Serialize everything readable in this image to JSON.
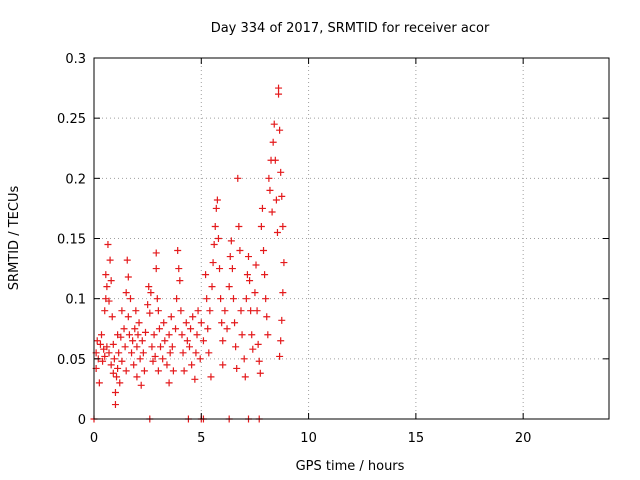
{
  "chart_data": {
    "type": "scatter",
    "title": "Day 334 of 2017, SRMTID for receiver acor",
    "xlabel": "GPS time / hours",
    "ylabel": "SRMTID / TECUs",
    "xlim": [
      0,
      24
    ],
    "ylim": [
      0,
      0.3
    ],
    "xticks": [
      0,
      5,
      10,
      15,
      20
    ],
    "xtick_labels": [
      "0",
      "5",
      "10",
      "15",
      "20"
    ],
    "yticks": [
      0,
      0.05,
      0.1,
      0.15,
      0.2,
      0.25,
      0.3
    ],
    "ytick_labels": [
      "0",
      "0.05",
      "0.1",
      "0.15",
      "0.2",
      "0.25",
      "0.3"
    ],
    "grid": true,
    "marker": "+",
    "color": "#e41a1c",
    "series": [
      {
        "name": "SRMTID",
        "points": [
          [
            0.0,
            0.0
          ],
          [
            2.6,
            0.0
          ],
          [
            4.4,
            0.0
          ],
          [
            5.0,
            0.0
          ],
          [
            5.1,
            0.0
          ],
          [
            6.3,
            0.0
          ],
          [
            7.2,
            0.0
          ],
          [
            7.7,
            0.0
          ],
          [
            0.1,
            0.042
          ],
          [
            0.1,
            0.055
          ],
          [
            0.15,
            0.065
          ],
          [
            0.2,
            0.05
          ],
          [
            0.25,
            0.03
          ],
          [
            0.3,
            0.062
          ],
          [
            0.35,
            0.07
          ],
          [
            0.4,
            0.048
          ],
          [
            0.45,
            0.058
          ],
          [
            0.5,
            0.052
          ],
          [
            0.5,
            0.09
          ],
          [
            0.55,
            0.1
          ],
          [
            0.55,
            0.12
          ],
          [
            0.6,
            0.11
          ],
          [
            0.6,
            0.06
          ],
          [
            0.65,
            0.145
          ],
          [
            0.7,
            0.098
          ],
          [
            0.7,
            0.055
          ],
          [
            0.75,
            0.132
          ],
          [
            0.8,
            0.115
          ],
          [
            0.8,
            0.045
          ],
          [
            0.85,
            0.085
          ],
          [
            0.9,
            0.038
          ],
          [
            0.9,
            0.062
          ],
          [
            0.95,
            0.05
          ],
          [
            1.0,
            0.022
          ],
          [
            1.0,
            0.012
          ],
          [
            1.05,
            0.035
          ],
          [
            1.1,
            0.07
          ],
          [
            1.1,
            0.042
          ],
          [
            1.15,
            0.055
          ],
          [
            1.2,
            0.03
          ],
          [
            1.25,
            0.068
          ],
          [
            1.3,
            0.09
          ],
          [
            1.3,
            0.048
          ],
          [
            1.4,
            0.075
          ],
          [
            1.45,
            0.06
          ],
          [
            1.5,
            0.105
          ],
          [
            1.5,
            0.04
          ],
          [
            1.55,
            0.132
          ],
          [
            1.6,
            0.118
          ],
          [
            1.6,
            0.085
          ],
          [
            1.65,
            0.07
          ],
          [
            1.7,
            0.1
          ],
          [
            1.75,
            0.055
          ],
          [
            1.8,
            0.065
          ],
          [
            1.85,
            0.045
          ],
          [
            1.9,
            0.075
          ],
          [
            1.95,
            0.09
          ],
          [
            2.0,
            0.06
          ],
          [
            2.0,
            0.035
          ],
          [
            2.05,
            0.07
          ],
          [
            2.1,
            0.08
          ],
          [
            2.15,
            0.05
          ],
          [
            2.2,
            0.028
          ],
          [
            2.25,
            0.065
          ],
          [
            2.3,
            0.055
          ],
          [
            2.35,
            0.04
          ],
          [
            2.4,
            0.072
          ],
          [
            2.5,
            0.095
          ],
          [
            2.55,
            0.11
          ],
          [
            2.6,
            0.088
          ],
          [
            2.65,
            0.105
          ],
          [
            2.7,
            0.06
          ],
          [
            2.75,
            0.048
          ],
          [
            2.8,
            0.07
          ],
          [
            2.85,
            0.052
          ],
          [
            2.9,
            0.125
          ],
          [
            2.9,
            0.138
          ],
          [
            2.95,
            0.1
          ],
          [
            3.0,
            0.09
          ],
          [
            3.0,
            0.04
          ],
          [
            3.05,
            0.075
          ],
          [
            3.1,
            0.06
          ],
          [
            3.2,
            0.05
          ],
          [
            3.25,
            0.08
          ],
          [
            3.3,
            0.065
          ],
          [
            3.4,
            0.045
          ],
          [
            3.5,
            0.07
          ],
          [
            3.5,
            0.03
          ],
          [
            3.55,
            0.055
          ],
          [
            3.6,
            0.085
          ],
          [
            3.65,
            0.06
          ],
          [
            3.7,
            0.04
          ],
          [
            3.8,
            0.075
          ],
          [
            3.85,
            0.1
          ],
          [
            3.9,
            0.14
          ],
          [
            3.95,
            0.125
          ],
          [
            4.0,
            0.115
          ],
          [
            4.05,
            0.09
          ],
          [
            4.1,
            0.07
          ],
          [
            4.15,
            0.055
          ],
          [
            4.2,
            0.04
          ],
          [
            4.3,
            0.08
          ],
          [
            4.35,
            0.065
          ],
          [
            4.45,
            0.06
          ],
          [
            4.5,
            0.075
          ],
          [
            4.55,
            0.045
          ],
          [
            4.6,
            0.085
          ],
          [
            4.7,
            0.033
          ],
          [
            4.75,
            0.055
          ],
          [
            4.8,
            0.07
          ],
          [
            4.85,
            0.09
          ],
          [
            4.95,
            0.05
          ],
          [
            5.0,
            0.08
          ],
          [
            5.1,
            0.065
          ],
          [
            5.2,
            0.12
          ],
          [
            5.25,
            0.1
          ],
          [
            5.3,
            0.075
          ],
          [
            5.35,
            0.055
          ],
          [
            5.4,
            0.09
          ],
          [
            5.45,
            0.035
          ],
          [
            5.5,
            0.11
          ],
          [
            5.55,
            0.13
          ],
          [
            5.6,
            0.145
          ],
          [
            5.65,
            0.16
          ],
          [
            5.7,
            0.175
          ],
          [
            5.75,
            0.182
          ],
          [
            5.8,
            0.15
          ],
          [
            5.85,
            0.125
          ],
          [
            5.9,
            0.1
          ],
          [
            5.95,
            0.08
          ],
          [
            6.0,
            0.065
          ],
          [
            6.0,
            0.045
          ],
          [
            6.1,
            0.09
          ],
          [
            6.2,
            0.075
          ],
          [
            6.3,
            0.11
          ],
          [
            6.35,
            0.135
          ],
          [
            6.4,
            0.148
          ],
          [
            6.45,
            0.125
          ],
          [
            6.5,
            0.1
          ],
          [
            6.55,
            0.08
          ],
          [
            6.6,
            0.06
          ],
          [
            6.65,
            0.042
          ],
          [
            6.7,
            0.2
          ],
          [
            6.75,
            0.16
          ],
          [
            6.8,
            0.14
          ],
          [
            6.85,
            0.09
          ],
          [
            6.9,
            0.07
          ],
          [
            7.0,
            0.05
          ],
          [
            7.05,
            0.035
          ],
          [
            7.1,
            0.1
          ],
          [
            7.15,
            0.12
          ],
          [
            7.2,
            0.135
          ],
          [
            7.25,
            0.115
          ],
          [
            7.3,
            0.09
          ],
          [
            7.35,
            0.07
          ],
          [
            7.4,
            0.058
          ],
          [
            7.5,
            0.105
          ],
          [
            7.55,
            0.128
          ],
          [
            7.6,
            0.09
          ],
          [
            7.65,
            0.062
          ],
          [
            7.7,
            0.048
          ],
          [
            7.75,
            0.038
          ],
          [
            7.8,
            0.16
          ],
          [
            7.85,
            0.175
          ],
          [
            7.9,
            0.14
          ],
          [
            7.95,
            0.12
          ],
          [
            8.0,
            0.1
          ],
          [
            8.05,
            0.085
          ],
          [
            8.1,
            0.07
          ],
          [
            8.15,
            0.2
          ],
          [
            8.2,
            0.19
          ],
          [
            8.25,
            0.215
          ],
          [
            8.3,
            0.172
          ],
          [
            8.35,
            0.23
          ],
          [
            8.4,
            0.245
          ],
          [
            8.45,
            0.215
          ],
          [
            8.5,
            0.182
          ],
          [
            8.55,
            0.155
          ],
          [
            8.6,
            0.27
          ],
          [
            8.6,
            0.275
          ],
          [
            8.65,
            0.24
          ],
          [
            8.7,
            0.205
          ],
          [
            8.75,
            0.185
          ],
          [
            8.8,
            0.16
          ],
          [
            8.85,
            0.13
          ],
          [
            8.8,
            0.105
          ],
          [
            8.75,
            0.082
          ],
          [
            8.7,
            0.065
          ],
          [
            8.65,
            0.052
          ]
        ]
      }
    ]
  }
}
